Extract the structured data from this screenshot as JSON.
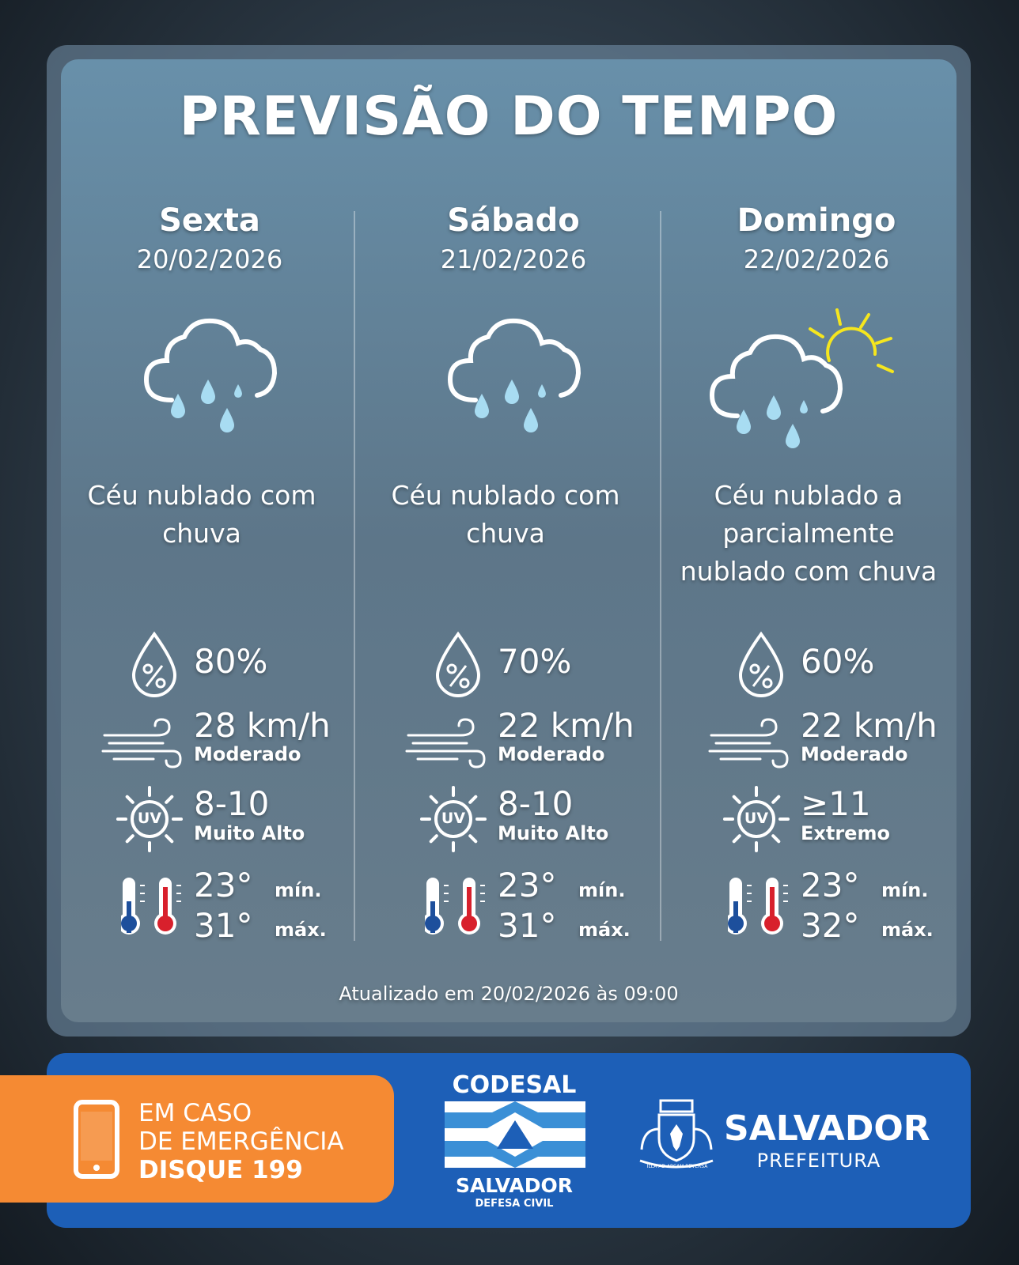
{
  "header": {
    "title": "PREVISÃO DO TEMPO"
  },
  "days": [
    {
      "name": "Sexta",
      "date": "20/02/2026",
      "description": "Céu nublado com chuva",
      "rain_chance": "80%",
      "wind_speed": "28 km/h",
      "wind_label": "Moderado",
      "uv_index": "8-10",
      "uv_label": "Muito Alto",
      "temp_min": "23°",
      "temp_max": "31°"
    },
    {
      "name": "Sábado",
      "date": "21/02/2026",
      "description": "Céu nublado com chuva",
      "rain_chance": "70%",
      "wind_speed": "22 km/h",
      "wind_label": "Moderado",
      "uv_index": "8-10",
      "uv_label": "Muito Alto",
      "temp_min": "23°",
      "temp_max": "31°"
    },
    {
      "name": "Domingo",
      "date": "22/02/2026",
      "description": "Céu nublado a parcialmente nublado com chuva",
      "rain_chance": "60%",
      "wind_speed": "22 km/h",
      "wind_label": "Moderado",
      "uv_index": "≥11",
      "uv_label": "Extremo",
      "temp_min": "23°",
      "temp_max": "32°"
    }
  ],
  "labels": {
    "min": "mín.",
    "max": "máx.",
    "uv": "UV"
  },
  "updated": "Atualizado em 20/02/2026 às 09:00",
  "footer": {
    "emergency": {
      "line1": "EM CASO",
      "line2": "DE EMERGÊNCIA",
      "line3": "DISQUE 199"
    },
    "codesal": {
      "name": "CODESAL",
      "city": "SALVADOR",
      "subtitle": "DEFESA CIVIL"
    },
    "prefeitura": {
      "name": "SALVADOR",
      "subtitle": "PREFEITURA",
      "motto": "ILLA AD ARCAM REVERSA"
    }
  }
}
